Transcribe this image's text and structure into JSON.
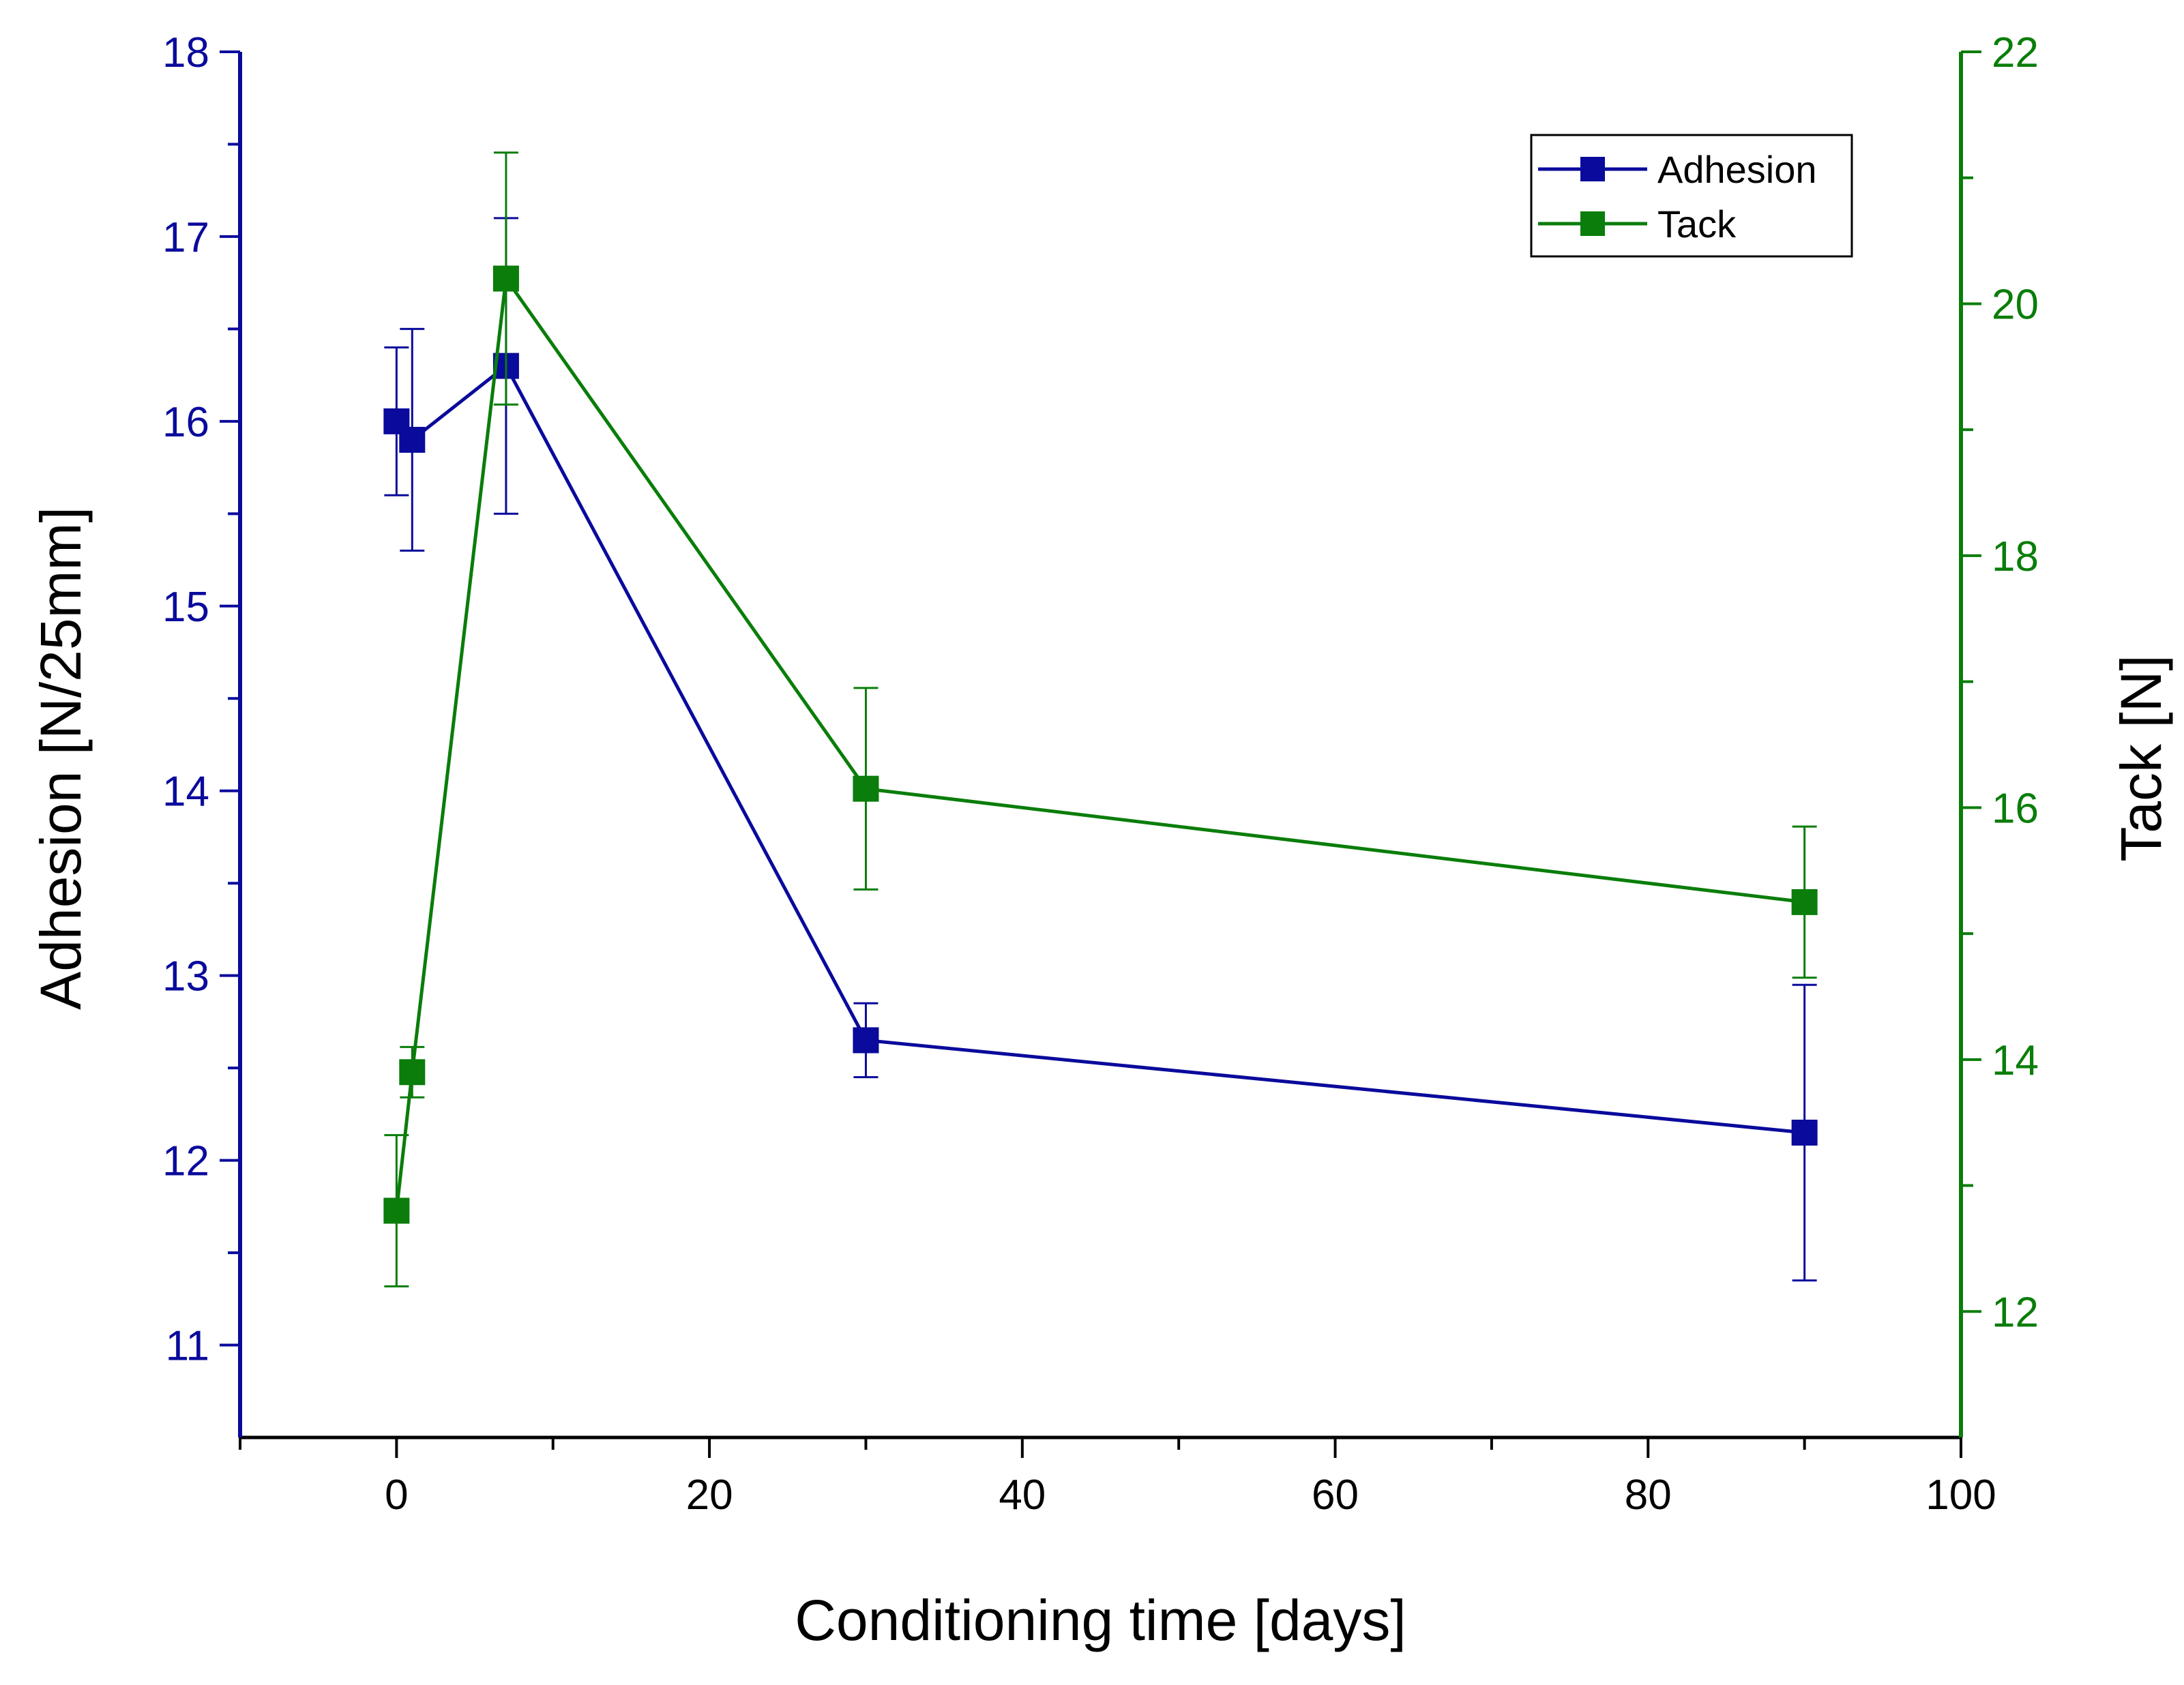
{
  "chart_data": {
    "type": "line",
    "title": "",
    "xlabel": "Conditioning time [days]",
    "ylabel_left": "Adhesion [N/25mm]",
    "ylabel_right": "Tack [N]",
    "xlim": [
      -10,
      100
    ],
    "ylim_left": [
      10.5,
      18
    ],
    "ylim_right": [
      11,
      22
    ],
    "xticks": [
      0,
      20,
      40,
      60,
      80,
      100
    ],
    "yticks_left": [
      11,
      12,
      13,
      14,
      15,
      16,
      17,
      18
    ],
    "yticks_right": [
      12,
      14,
      16,
      18,
      20,
      22
    ],
    "legend_position": "top-right",
    "grid": false,
    "series": [
      {
        "name": "Adhesion",
        "axis": "left",
        "color": "#0a0a9c",
        "x": [
          0,
          1,
          7,
          30,
          90
        ],
        "y": [
          16.0,
          15.9,
          16.3,
          12.65,
          12.15
        ],
        "err_low": [
          15.6,
          15.3,
          15.5,
          12.45,
          11.35
        ],
        "err_high": [
          16.4,
          16.5,
          17.1,
          12.85,
          12.95
        ]
      },
      {
        "name": "Tack",
        "axis": "right",
        "color": "#0a7d0a",
        "x": [
          0,
          1,
          7,
          30,
          90
        ],
        "y": [
          12.8,
          13.9,
          20.2,
          16.15,
          15.25
        ],
        "err_low": [
          12.2,
          13.7,
          19.2,
          15.35,
          14.65
        ],
        "err_high": [
          13.4,
          14.1,
          21.2,
          16.95,
          15.85
        ]
      }
    ],
    "axis_colors": {
      "left": "#0a0a9c",
      "right": "#0a7d0a",
      "bottom": "#000000"
    }
  }
}
